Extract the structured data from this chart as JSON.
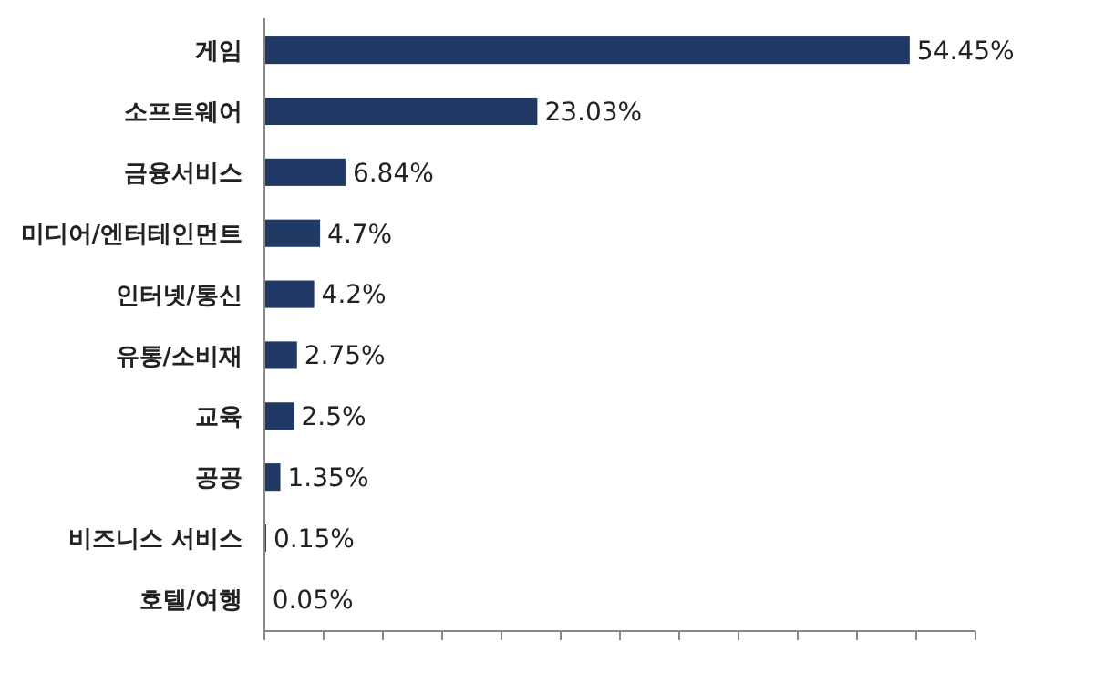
{
  "chart_data": {
    "type": "bar",
    "orientation": "horizontal",
    "categories": [
      "게임",
      "소프트웨어",
      "금융서비스",
      "미디어/엔터테인먼트",
      "인터넷/통신",
      "유통/소비재",
      "교육",
      "공공",
      "비즈니스 서비스",
      "호텔/여행"
    ],
    "values": [
      54.45,
      23.03,
      6.84,
      4.7,
      4.2,
      2.75,
      2.5,
      1.35,
      0.15,
      0.05
    ],
    "value_labels": [
      "54.45%",
      "23.03%",
      "6.84%",
      "4.7%",
      "4.2%",
      "2.75%",
      "2.5%",
      "1.35%",
      "0.15%",
      "0.05%"
    ],
    "color": "#1f3864",
    "xlim": [
      0,
      60
    ],
    "xticks": [
      {
        "value": 0,
        "label": null
      },
      {
        "value": 5,
        "label": null
      },
      {
        "value": 10,
        "label": null
      },
      {
        "value": 15,
        "label": null
      },
      {
        "value": 20,
        "label": null
      },
      {
        "value": 25,
        "label": null
      },
      {
        "value": 30,
        "label": null
      },
      {
        "value": 35,
        "label": null
      },
      {
        "value": 40,
        "label": null
      },
      {
        "value": 45,
        "label": null
      },
      {
        "value": 50,
        "label": null
      },
      {
        "value": 55,
        "label": null
      },
      {
        "value": 60,
        "label": null
      }
    ],
    "tick_labels": "y"
  }
}
